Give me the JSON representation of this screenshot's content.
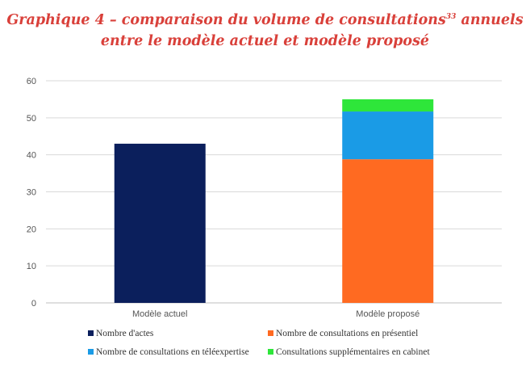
{
  "title": {
    "line1_main": "Graphique 4 – comparaison du volume de consultations",
    "line1_sup": "33",
    "line1_end": " annuels",
    "line2": "entre le modèle actuel et modèle proposé"
  },
  "colors": {
    "actes": "#0b1f5c",
    "presentiel": "#ff6a21",
    "teleexpertise": "#1a9be6",
    "cabinet": "#2ee63a",
    "grid": "#d9d9d9",
    "title": "#d9403a"
  },
  "chart_data": {
    "type": "bar",
    "stacked": true,
    "categories": [
      "Modèle actuel",
      "Modèle proposé"
    ],
    "series": [
      {
        "name": "Nombre d'actes",
        "values": [
          43,
          0
        ],
        "color": "#0b1f5c"
      },
      {
        "name": "Nombre de consultations en présentiel",
        "values": [
          0,
          38.8
        ],
        "color": "#ff6a21"
      },
      {
        "name": "Nombre de consultations en téléexpertise",
        "values": [
          0,
          12.9
        ],
        "color": "#1a9be6"
      },
      {
        "name": "Consultations supplémentaires en cabinet",
        "values": [
          0,
          3.3
        ],
        "color": "#2ee63a"
      }
    ],
    "ylim": [
      0,
      60
    ],
    "yticks": [
      0,
      10,
      20,
      30,
      40,
      50,
      60
    ],
    "grid": true,
    "legend_position": "bottom"
  }
}
